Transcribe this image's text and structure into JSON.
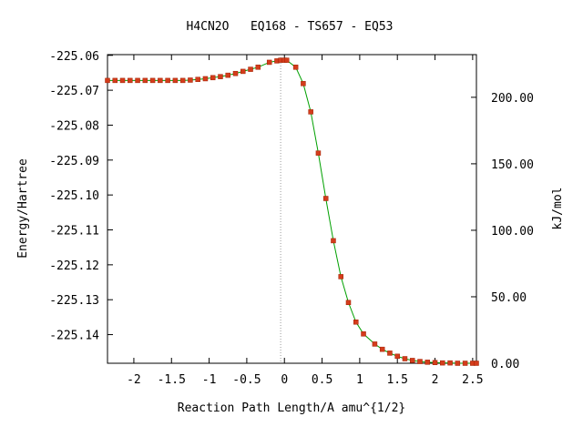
{
  "chart_data": {
    "type": "line",
    "title": "H4CN2O   EQ168 - TS657 - EQ53",
    "xlabel": "Reaction Path Length/A amu^{1/2}",
    "ylabel": "Energy/Hartree",
    "y2label": "kJ/mol",
    "xlim": [
      -2.35,
      2.55
    ],
    "ylim": [
      -225.1482,
      -225.0598
    ],
    "x_ticks": [
      "-2",
      "-1.5",
      "-1",
      "-0.5",
      "0",
      "0.5",
      "1",
      "1.5",
      "2",
      "2.5"
    ],
    "y_ticks": [
      "-225.06",
      "-225.07",
      "-225.08",
      "-225.09",
      "-225.10",
      "-225.11",
      "-225.12",
      "-225.13",
      "-225.14"
    ],
    "y2_ticks": [
      "200.00",
      "150.00",
      "100.00",
      "50.00",
      "0.00"
    ],
    "y2_reference_hartree": -225.1482,
    "ts_x": -0.05,
    "line_color": "#00a000",
    "marker_fill": "#d43c1c",
    "marker_edge": "#a02000",
    "series": [
      {
        "x": [
          -2.35,
          -2.25,
          -2.15,
          -2.05,
          -1.95,
          -1.85,
          -1.75,
          -1.65,
          -1.55,
          -1.45,
          -1.35,
          -1.25,
          -1.15,
          -1.05,
          -0.95,
          -0.85,
          -0.75,
          -0.65,
          -0.55,
          -0.45,
          -0.35,
          -0.2,
          -0.1,
          -0.05,
          0.0,
          0.03,
          0.15,
          0.25,
          0.35,
          0.45,
          0.55,
          0.65,
          0.75,
          0.85,
          0.95,
          1.05,
          1.2,
          1.3,
          1.4,
          1.5,
          1.6,
          1.7,
          1.8,
          1.9,
          2.0,
          2.1,
          2.2,
          2.3,
          2.4,
          2.5,
          2.55
        ],
        "y": [
          -225.0672,
          -225.0672,
          -225.0672,
          -225.0672,
          -225.0672,
          -225.0672,
          -225.0672,
          -225.0672,
          -225.0672,
          -225.0672,
          -225.0672,
          -225.0671,
          -225.0669,
          -225.0667,
          -225.0664,
          -225.0661,
          -225.0657,
          -225.0652,
          -225.0646,
          -225.064,
          -225.0634,
          -225.062,
          -225.0616,
          -225.0614,
          -225.0614,
          -225.0614,
          -225.0634,
          -225.0681,
          -225.0762,
          -225.088,
          -225.101,
          -225.1131,
          -225.1234,
          -225.1308,
          -225.1364,
          -225.1398,
          -225.1427,
          -225.1442,
          -225.1453,
          -225.1462,
          -225.1469,
          -225.1474,
          -225.1477,
          -225.1479,
          -225.148,
          -225.1481,
          -225.1481,
          -225.1482,
          -225.1482,
          -225.1482,
          -225.1482
        ]
      }
    ]
  }
}
